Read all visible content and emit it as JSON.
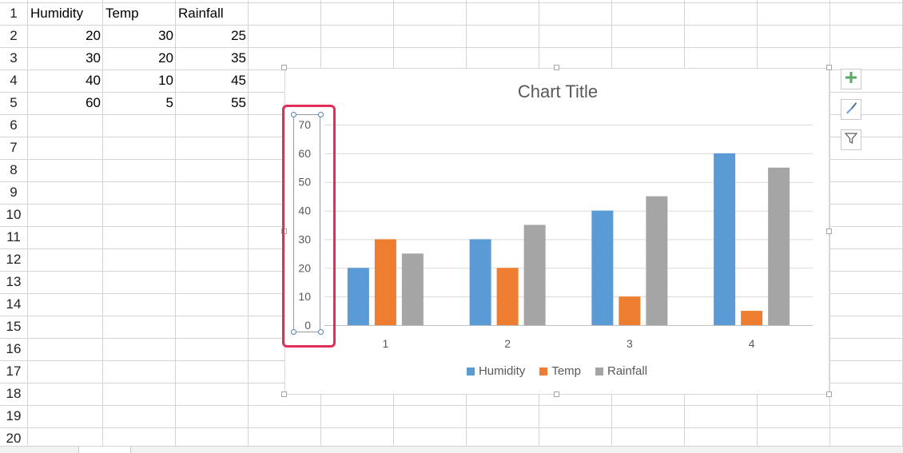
{
  "sheet": {
    "row_numbers": [
      "1",
      "2",
      "3",
      "4",
      "5",
      "6",
      "7",
      "8",
      "9",
      "10",
      "11",
      "12",
      "13",
      "14",
      "15",
      "16",
      "17",
      "18",
      "19",
      "20"
    ],
    "headers": [
      "Humidity",
      "Temp",
      "Rainfall"
    ],
    "rows": [
      [
        "20",
        "30",
        "25"
      ],
      [
        "30",
        "20",
        "35"
      ],
      [
        "40",
        "10",
        "45"
      ],
      [
        "60",
        "5",
        "55"
      ]
    ]
  },
  "chart_data": {
    "type": "bar",
    "title": "Chart Title",
    "categories": [
      "1",
      "2",
      "3",
      "4"
    ],
    "series": [
      {
        "name": "Humidity",
        "values": [
          20,
          30,
          40,
          60
        ],
        "color": "#5b9bd5"
      },
      {
        "name": "Temp",
        "values": [
          30,
          20,
          10,
          5
        ],
        "color": "#ed7d31"
      },
      {
        "name": "Rainfall",
        "values": [
          25,
          35,
          45,
          55
        ],
        "color": "#a5a5a5"
      }
    ],
    "y_ticks": [
      "0",
      "10",
      "20",
      "30",
      "40",
      "50",
      "60",
      "70"
    ],
    "ylim": [
      0,
      70
    ],
    "grid": true,
    "legend_position": "bottom",
    "xlabel": "",
    "ylabel": ""
  },
  "chart_tools": {
    "add_element": "plus-icon",
    "styles": "brush-icon",
    "filter": "filter-icon"
  },
  "selection": {
    "highlight_color": "#e0305a"
  }
}
